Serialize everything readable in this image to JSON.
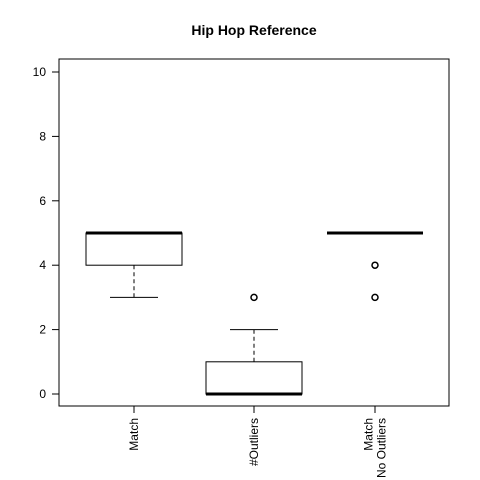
{
  "chart_data": {
    "type": "boxplot",
    "title": "Hip Hop Reference",
    "xlabel": "",
    "ylabel": "",
    "ylim": [
      0,
      10
    ],
    "yticks": [
      0,
      2,
      4,
      6,
      8,
      10
    ],
    "categories": [
      "Match",
      "#Outliers",
      "Match\nNo Outliers"
    ],
    "boxes": [
      {
        "label": "Match",
        "whisker_low": 3,
        "q1": 4,
        "median": 5,
        "q3": 5,
        "whisker_high": 5,
        "outliers": []
      },
      {
        "label": "#Outliers",
        "whisker_low": 0,
        "q1": 0,
        "median": 0,
        "q3": 1,
        "whisker_high": 2,
        "outliers": [
          3
        ]
      },
      {
        "label": "Match\nNo Outliers",
        "whisker_low": 5,
        "q1": 5,
        "median": 5,
        "q3": 5,
        "whisker_high": 5,
        "outliers": [
          4,
          3
        ]
      }
    ],
    "grid": false,
    "colors": {
      "box_fill": "#ffffff",
      "stroke": "#000000"
    }
  }
}
